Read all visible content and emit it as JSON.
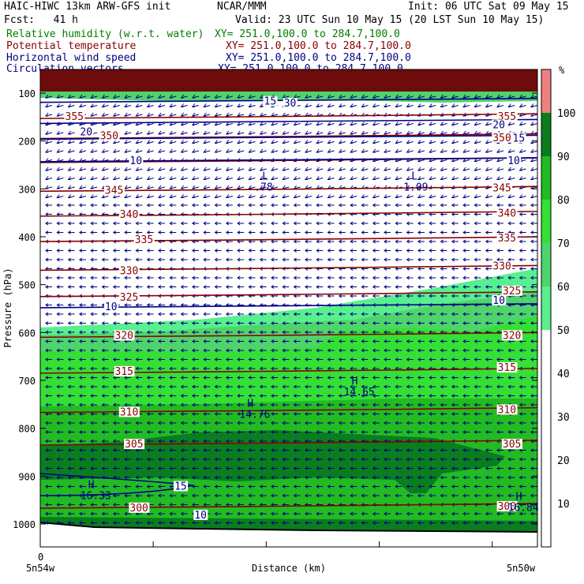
{
  "header": {
    "line1_left": "HAIC-HIWC 13km ARW-GFS init",
    "line1_mid": "NCAR/MMM",
    "line1_right": "Init: 06 UTC Sat 09 May 15",
    "line2_left": "Fcst:   41 h",
    "line2_right": "Valid: 23 UTC Sun 10 May 15 (20 LST Sun 10 May 15)",
    "fields": [
      {
        "name": "Relative humidity (w.r.t. water)",
        "xy": "XY= 251.0,100.0 to 284.7,100.0",
        "color": "#008000"
      },
      {
        "name": "Potential temperature",
        "xy": "XY= 251.0,100.0 to 284.7,100.0",
        "color": "#8b0000"
      },
      {
        "name": "Horizontal wind speed",
        "xy": "XY= 251.0,100.0 to 284.7,100.0",
        "color": "#000080"
      },
      {
        "name": "Circulation vectors",
        "xy": "XY= 251.0,100.0 to 284.7,100.0",
        "color": "#000080"
      }
    ]
  },
  "chart_data": {
    "type": "heatmap",
    "xlabel": "Distance (km)",
    "ylabel": "Pressure (hPa)",
    "x_tick_zero": "0",
    "x_left_label": "5n54w",
    "x_right_label": "5n50w",
    "y_ticks": [
      100,
      200,
      300,
      400,
      500,
      600,
      700,
      800,
      900,
      1000
    ],
    "ylim": [
      1050,
      50
    ],
    "colorbar": {
      "unit": "%",
      "ticks": [
        10,
        20,
        30,
        40,
        50,
        60,
        70,
        80,
        90,
        100
      ],
      "bands": [
        {
          "from": 50,
          "to": 60,
          "color": "#59ef8f"
        },
        {
          "from": 60,
          "to": 70,
          "color": "#4fd46b"
        },
        {
          "from": 70,
          "to": 80,
          "color": "#35e035"
        },
        {
          "from": 80,
          "to": 90,
          "color": "#22bb22"
        },
        {
          "from": 90,
          "to": 100,
          "color": "#0a7d1f"
        },
        {
          "from": 100,
          "to": 110,
          "color": "#f08080"
        }
      ]
    },
    "theta_labels": [
      {
        "text": "355",
        "p": 148,
        "d": 0.05
      },
      {
        "text": "355",
        "p": 148,
        "d": 0.92
      },
      {
        "text": "350",
        "p": 188,
        "d": 0.12
      },
      {
        "text": "350",
        "p": 192,
        "d": 0.91
      },
      {
        "text": "345",
        "p": 302,
        "d": 0.13
      },
      {
        "text": "345",
        "p": 297,
        "d": 0.91
      },
      {
        "text": "340",
        "p": 352,
        "d": 0.16
      },
      {
        "text": "340",
        "p": 350,
        "d": 0.92
      },
      {
        "text": "335",
        "p": 405,
        "d": 0.19
      },
      {
        "text": "335",
        "p": 402,
        "d": 0.92
      },
      {
        "text": "330",
        "p": 470,
        "d": 0.16
      },
      {
        "text": "330",
        "p": 460,
        "d": 0.91
      },
      {
        "text": "325",
        "p": 525,
        "d": 0.16
      },
      {
        "text": "325",
        "p": 512,
        "d": 0.93
      },
      {
        "text": "320",
        "p": 605,
        "d": 0.15
      },
      {
        "text": "320",
        "p": 605,
        "d": 0.93
      },
      {
        "text": "315",
        "p": 680,
        "d": 0.15
      },
      {
        "text": "315",
        "p": 672,
        "d": 0.92
      },
      {
        "text": "310",
        "p": 765,
        "d": 0.16
      },
      {
        "text": "310",
        "p": 760,
        "d": 0.92
      },
      {
        "text": "305",
        "p": 832,
        "d": 0.17
      },
      {
        "text": "305",
        "p": 832,
        "d": 0.93
      },
      {
        "text": "300",
        "p": 965,
        "d": 0.18
      },
      {
        "text": "300",
        "p": 962,
        "d": 0.92
      }
    ],
    "wind_labels": [
      {
        "text": "30",
        "p": 120,
        "d": 0.49
      },
      {
        "text": "20",
        "p": 180,
        "d": 0.08
      },
      {
        "text": "20",
        "p": 165,
        "d": 0.91
      },
      {
        "text": "15",
        "p": 116,
        "d": 0.45
      },
      {
        "text": "15",
        "p": 193,
        "d": 0.95
      },
      {
        "text": "10",
        "p": 240,
        "d": 0.18
      },
      {
        "text": "10",
        "p": 240,
        "d": 0.94
      },
      {
        "text": "10",
        "p": 545,
        "d": 0.13
      },
      {
        "text": "10",
        "p": 532,
        "d": 0.91
      },
      {
        "text": "15",
        "p": 920,
        "d": 0.27
      },
      {
        "text": "10",
        "p": 980,
        "d": 0.31
      }
    ],
    "extrema": [
      {
        "type": "L",
        "value": ".78",
        "p": 290,
        "d": 0.44
      },
      {
        "type": "L",
        "value": "1.09",
        "p": 290,
        "d": 0.74
      },
      {
        "type": "H",
        "value": "14.76",
        "p": 765,
        "d": 0.41
      },
      {
        "type": "H",
        "value": "14.65",
        "p": 718,
        "d": 0.62
      },
      {
        "type": "H",
        "value": "16.33",
        "p": 935,
        "d": 0.09
      },
      {
        "type": "H",
        "value": "16.84",
        "p": 960,
        "d": 0.95
      }
    ]
  }
}
